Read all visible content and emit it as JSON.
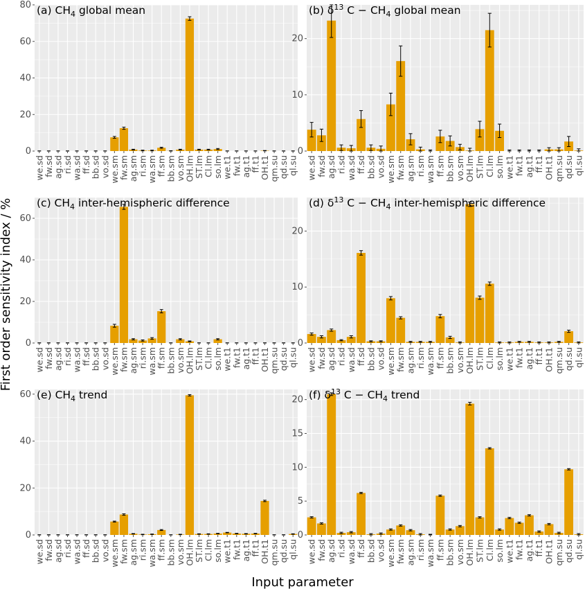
{
  "figure": {
    "ylabel": "First order sensitivity index / %",
    "xlabel": "Input parameter"
  },
  "colors": {
    "bar": "#E69F00",
    "panel_bg": "#EBEBEB",
    "grid": "#FFFFFF",
    "error": "#000000",
    "axis_text": "#4D4D4D"
  },
  "chart_data": [
    {
      "type": "bar",
      "title": "(a) CH4 global mean",
      "categories": [
        "we.sd",
        "fw.sd",
        "ag.sd",
        "ri.sd",
        "wa.sd",
        "ff.sd",
        "bb.sd",
        "vo.sd",
        "we.sm",
        "fw.sm",
        "ag.sm",
        "ri.sm",
        "wa.sm",
        "ff.sm",
        "bb.sm",
        "vo.sm",
        "OH.lm",
        "ST.lm",
        "Cl.lm",
        "so.lm",
        "we.t1",
        "fw.t1",
        "ag.t1",
        "ff.t1",
        "OH.t1",
        "qm.su",
        "qd.su",
        "ql.su"
      ],
      "values": [
        0,
        0,
        0,
        0,
        0,
        0,
        0,
        0,
        7.5,
        12.5,
        0.8,
        0.3,
        0.3,
        1.8,
        0.1,
        0.8,
        72.5,
        0.8,
        0.8,
        1.1,
        0,
        0,
        0,
        0,
        0.2,
        0,
        0,
        0
      ],
      "errors": [
        0.1,
        0.1,
        0.1,
        0.1,
        0.1,
        0.1,
        0.1,
        0.1,
        0.5,
        0.6,
        0.2,
        0.2,
        0.2,
        0.3,
        0.1,
        0.2,
        1.0,
        0.2,
        0.2,
        0.3,
        0.1,
        0.1,
        0.1,
        0.1,
        0.1,
        0.1,
        0.1,
        0.1
      ],
      "ylim": [
        0,
        80
      ],
      "yticks": [
        0,
        20,
        40,
        60,
        80
      ]
    },
    {
      "type": "bar",
      "title": "(b) δ13 C − CH4 global mean",
      "categories": [
        "we.sd",
        "fw.sd",
        "ag.sd",
        "ri.sd",
        "wa.sd",
        "ff.sd",
        "bb.sd",
        "vo.sd",
        "we.sm",
        "fw.sm",
        "ag.sm",
        "ri.sm",
        "wa.sm",
        "ff.sm",
        "bb.sm",
        "vo.sm",
        "OH.lm",
        "ST.lm",
        "Cl.lm",
        "so.lm",
        "we.t1",
        "fw.t1",
        "ag.t1",
        "ff.t1",
        "OH.t1",
        "qm.su",
        "qd.su",
        "ql.su"
      ],
      "values": [
        3.8,
        2.8,
        23.2,
        0.6,
        0.5,
        5.7,
        0.6,
        0.4,
        8.3,
        16.0,
        2.1,
        0.3,
        0,
        2.6,
        1.8,
        0.7,
        0.1,
        3.9,
        21.5,
        3.6,
        0,
        0,
        0,
        0,
        0.3,
        0.3,
        1.7,
        0.1
      ],
      "errors": [
        1.3,
        1.1,
        3.0,
        0.5,
        0.5,
        1.5,
        0.5,
        0.5,
        2.0,
        2.7,
        1.0,
        0.4,
        0.2,
        1.1,
        0.9,
        0.5,
        0.4,
        1.4,
        3.0,
        1.2,
        0.2,
        0.2,
        0.2,
        0.2,
        0.3,
        0.3,
        0.9,
        0.3
      ],
      "ylim": [
        0,
        26
      ],
      "yticks": [
        0,
        10,
        20
      ]
    },
    {
      "type": "bar",
      "title": "(c) CH4 inter-hemispheric difference",
      "categories": [
        "we.sd",
        "fw.sd",
        "ag.sd",
        "ri.sd",
        "wa.sd",
        "ff.sd",
        "bb.sd",
        "vo.sd",
        "we.sm",
        "fw.sm",
        "ag.sm",
        "ri.sm",
        "wa.sm",
        "ff.sm",
        "bb.sm",
        "vo.sm",
        "OH.lm",
        "ST.lm",
        "Cl.lm",
        "so.lm",
        "we.t1",
        "fw.t1",
        "ag.t1",
        "ff.t1",
        "OH.t1",
        "qm.su",
        "qd.su",
        "ql.su"
      ],
      "values": [
        0,
        0,
        0,
        0,
        0,
        0,
        0,
        0,
        8.3,
        65.5,
        1.8,
        1.2,
        2.2,
        15.3,
        0,
        1.8,
        0.8,
        0,
        0,
        1.8,
        0,
        0,
        0,
        0,
        0,
        0,
        0,
        0
      ],
      "errors": [
        0.1,
        0.1,
        0.1,
        0.1,
        0.1,
        0.1,
        0.1,
        0.1,
        0.7,
        1.2,
        0.3,
        0.3,
        0.4,
        0.8,
        0.1,
        0.3,
        0.2,
        0.1,
        0.1,
        0.3,
        0.1,
        0.1,
        0.1,
        0.1,
        0.1,
        0.1,
        0.1,
        0.1
      ],
      "ylim": [
        0,
        70
      ],
      "yticks": [
        0,
        20,
        40,
        60
      ]
    },
    {
      "type": "bar",
      "title": "(d) δ13 C − CH4 inter-hemispheric difference",
      "categories": [
        "we.sd",
        "fw.sd",
        "ag.sd",
        "ri.sd",
        "wa.sd",
        "ff.sd",
        "bb.sd",
        "vo.sd",
        "we.sm",
        "fw.sm",
        "ag.sm",
        "ri.sm",
        "wa.sm",
        "ff.sm",
        "bb.sm",
        "vo.sm",
        "OH.lm",
        "ST.lm",
        "Cl.lm",
        "so.lm",
        "we.t1",
        "fw.t1",
        "ag.t1",
        "ff.t1",
        "OH.t1",
        "qm.su",
        "qd.su",
        "ql.su"
      ],
      "values": [
        1.6,
        1.1,
        2.3,
        0.5,
        1.1,
        16.1,
        0.3,
        0.3,
        8.0,
        4.5,
        0.2,
        0.2,
        0.2,
        4.8,
        1.0,
        0.1,
        24.8,
        8.1,
        10.6,
        0.1,
        0.1,
        0.2,
        0.2,
        0.1,
        0.1,
        0.2,
        2.1,
        0.1
      ],
      "errors": [
        0.2,
        0.2,
        0.2,
        0.1,
        0.2,
        0.4,
        0.1,
        0.1,
        0.3,
        0.2,
        0.1,
        0.1,
        0.1,
        0.3,
        0.2,
        0.1,
        0.4,
        0.3,
        0.3,
        0.1,
        0.1,
        0.1,
        0.1,
        0.1,
        0.1,
        0.1,
        0.2,
        0.1
      ],
      "ylim": [
        0,
        26
      ],
      "yticks": [
        0,
        10,
        20
      ]
    },
    {
      "type": "bar",
      "title": "(e) CH4 trend",
      "categories": [
        "we.sd",
        "fw.sd",
        "ag.sd",
        "ri.sd",
        "wa.sd",
        "ff.sd",
        "bb.sd",
        "vo.sd",
        "we.sm",
        "fw.sm",
        "ag.sm",
        "ri.sm",
        "wa.sm",
        "ff.sm",
        "bb.sm",
        "vo.sm",
        "OH.lm",
        "ST.lm",
        "Cl.lm",
        "so.lm",
        "we.t1",
        "fw.t1",
        "ag.t1",
        "ff.t1",
        "OH.t1",
        "qm.su",
        "qd.su",
        "ql.su"
      ],
      "values": [
        0,
        0,
        0,
        0,
        0,
        0,
        0,
        0,
        5.7,
        8.7,
        0.5,
        0.2,
        0.3,
        2.1,
        0,
        0.2,
        59.5,
        0.4,
        0.4,
        0.6,
        1.0,
        0.6,
        0.5,
        0.6,
        14.5,
        0,
        0,
        0.4
      ],
      "errors": [
        0.1,
        0.1,
        0.1,
        0.1,
        0.1,
        0.1,
        0.1,
        0.1,
        0.2,
        0.3,
        0.1,
        0.1,
        0.1,
        0.2,
        0.1,
        0.1,
        0.3,
        0.1,
        0.1,
        0.1,
        0.1,
        0.1,
        0.1,
        0.1,
        0.3,
        0.1,
        0.1,
        0.1
      ],
      "ylim": [
        0,
        62
      ],
      "yticks": [
        0,
        20,
        40,
        60
      ]
    },
    {
      "type": "bar",
      "title": "(f) δ13 C − CH4 trend",
      "categories": [
        "we.sd",
        "fw.sd",
        "ag.sd",
        "ri.sd",
        "wa.sd",
        "ff.sd",
        "bb.sd",
        "vo.sd",
        "we.sm",
        "fw.sm",
        "ag.sm",
        "ri.sm",
        "wa.sm",
        "ff.sm",
        "bb.sm",
        "vo.sm",
        "OH.lm",
        "ST.lm",
        "Cl.lm",
        "so.lm",
        "we.t1",
        "fw.t1",
        "ag.t1",
        "ff.t1",
        "OH.t1",
        "qm.su",
        "qd.su",
        "ql.su"
      ],
      "values": [
        2.6,
        1.7,
        20.8,
        0.3,
        0.4,
        6.2,
        0.1,
        0.2,
        0.8,
        1.4,
        0.7,
        0.1,
        0,
        5.8,
        0.8,
        1.3,
        19.4,
        2.6,
        12.8,
        0.8,
        2.5,
        1.8,
        2.9,
        0.5,
        1.6,
        0.3,
        9.7,
        0.1
      ],
      "errors": [
        0.1,
        0.1,
        0.2,
        0.1,
        0.1,
        0.1,
        0.1,
        0.1,
        0.1,
        0.1,
        0.1,
        0.1,
        0.1,
        0.1,
        0.1,
        0.1,
        0.2,
        0.1,
        0.1,
        0.1,
        0.1,
        0.1,
        0.1,
        0.1,
        0.1,
        0.1,
        0.1,
        0.1
      ],
      "ylim": [
        0,
        21.5
      ],
      "yticks": [
        0,
        5,
        10,
        15,
        20
      ]
    }
  ]
}
